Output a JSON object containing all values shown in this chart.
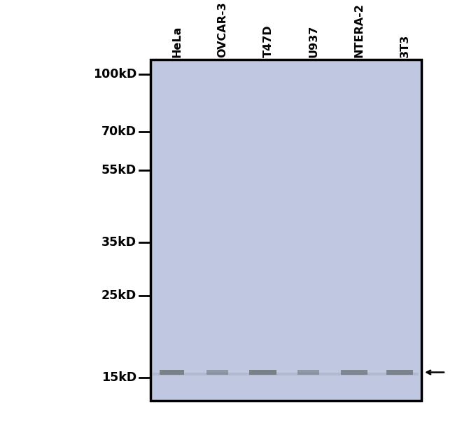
{
  "background_color": "#ffffff",
  "gel_color": "#bfc8e0",
  "lane_labels": [
    "HeLa",
    "OVCAR-3",
    "T47D",
    "U937",
    "NTERA-2",
    "3T3"
  ],
  "mw_markers": [
    "100kD",
    "70kD",
    "55kD",
    "35kD",
    "25kD",
    "15kD"
  ],
  "mw_values": [
    100,
    70,
    55,
    35,
    25,
    15
  ],
  "band_color": "#707880",
  "band_alphas": [
    0.88,
    0.6,
    0.88,
    0.6,
    0.8,
    0.85
  ],
  "label_fontsize": 11.5,
  "mw_fontsize": 12.5
}
